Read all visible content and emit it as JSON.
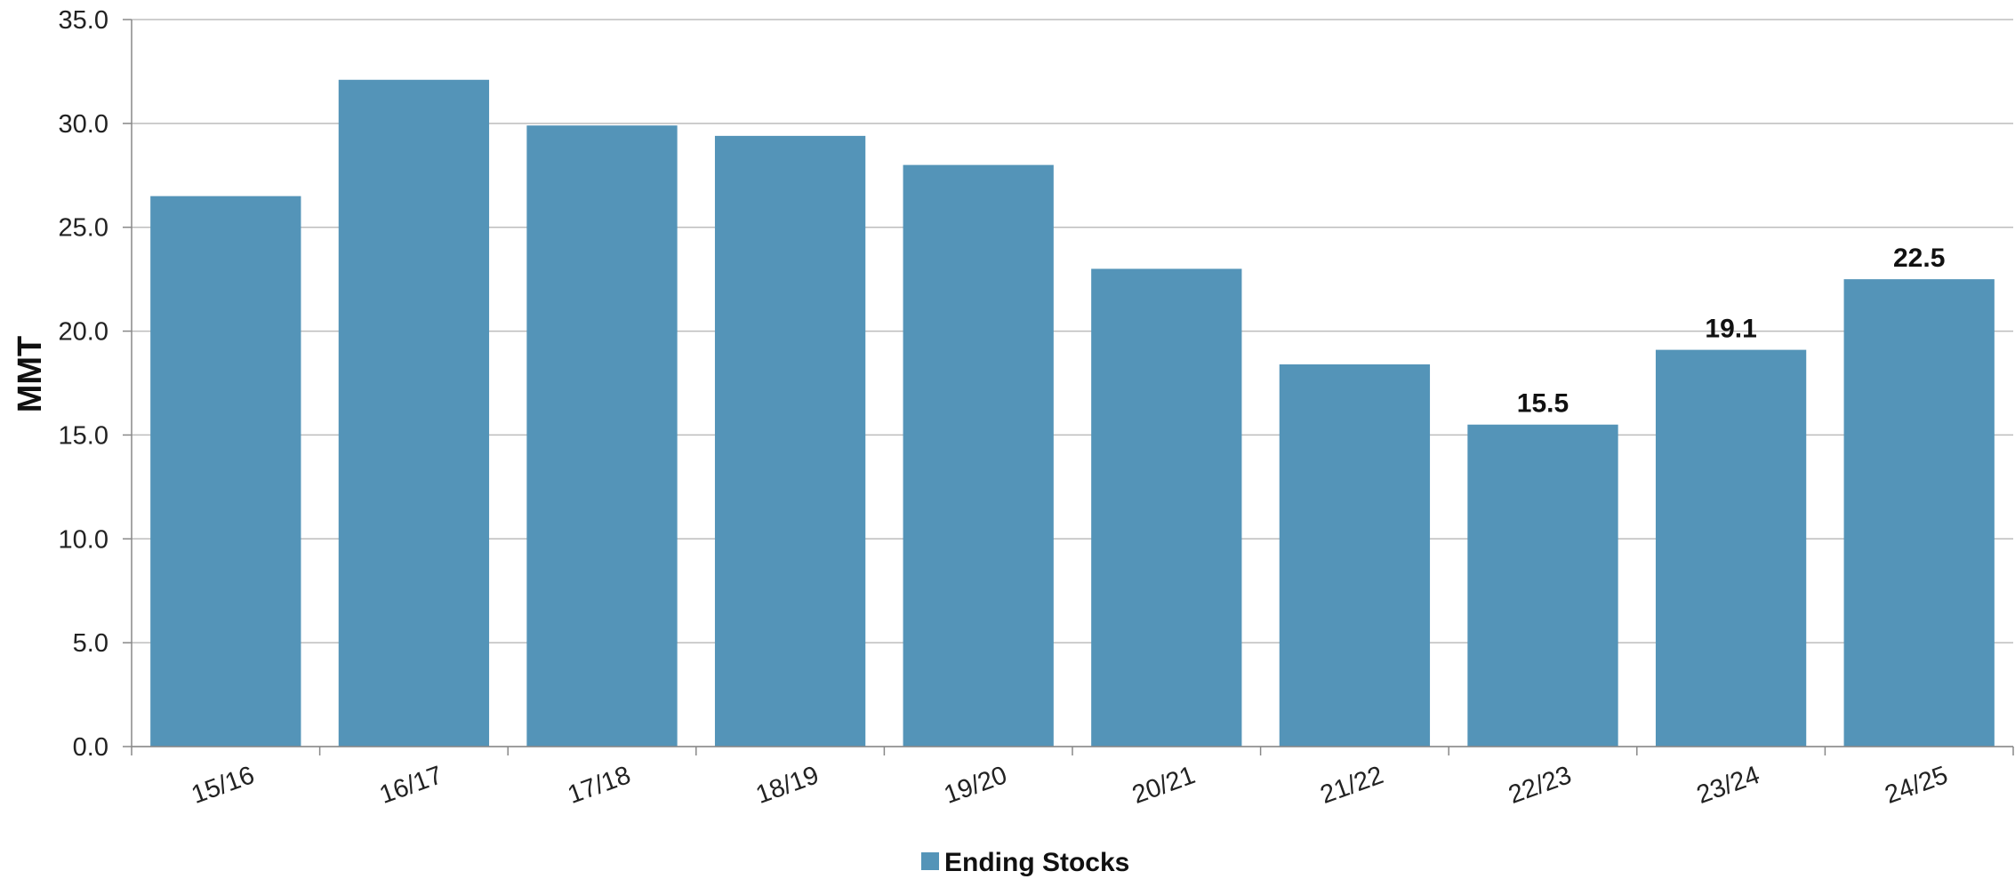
{
  "chart_data": {
    "type": "bar",
    "title": "",
    "xlabel": "",
    "ylabel": "MMT",
    "ylim": [
      0,
      35
    ],
    "ytick_step": 5,
    "ytick_labels": [
      "0.0",
      "5.0",
      "10.0",
      "15.0",
      "20.0",
      "25.0",
      "30.0",
      "35.0"
    ],
    "categories": [
      "15/16",
      "16/17",
      "17/18",
      "18/19",
      "19/20",
      "20/21",
      "21/22",
      "22/23",
      "23/24",
      "24/25"
    ],
    "series": [
      {
        "name": "Ending Stocks",
        "color": "#5494b8",
        "values": [
          26.5,
          32.1,
          29.9,
          29.4,
          28.0,
          23.0,
          18.4,
          15.5,
          19.1,
          22.5
        ],
        "data_labels": [
          "",
          "",
          "",
          "",
          "",
          "",
          "",
          "15.5",
          "19.1",
          "22.5"
        ]
      }
    ],
    "grid": true,
    "legend": "bottom-center"
  }
}
